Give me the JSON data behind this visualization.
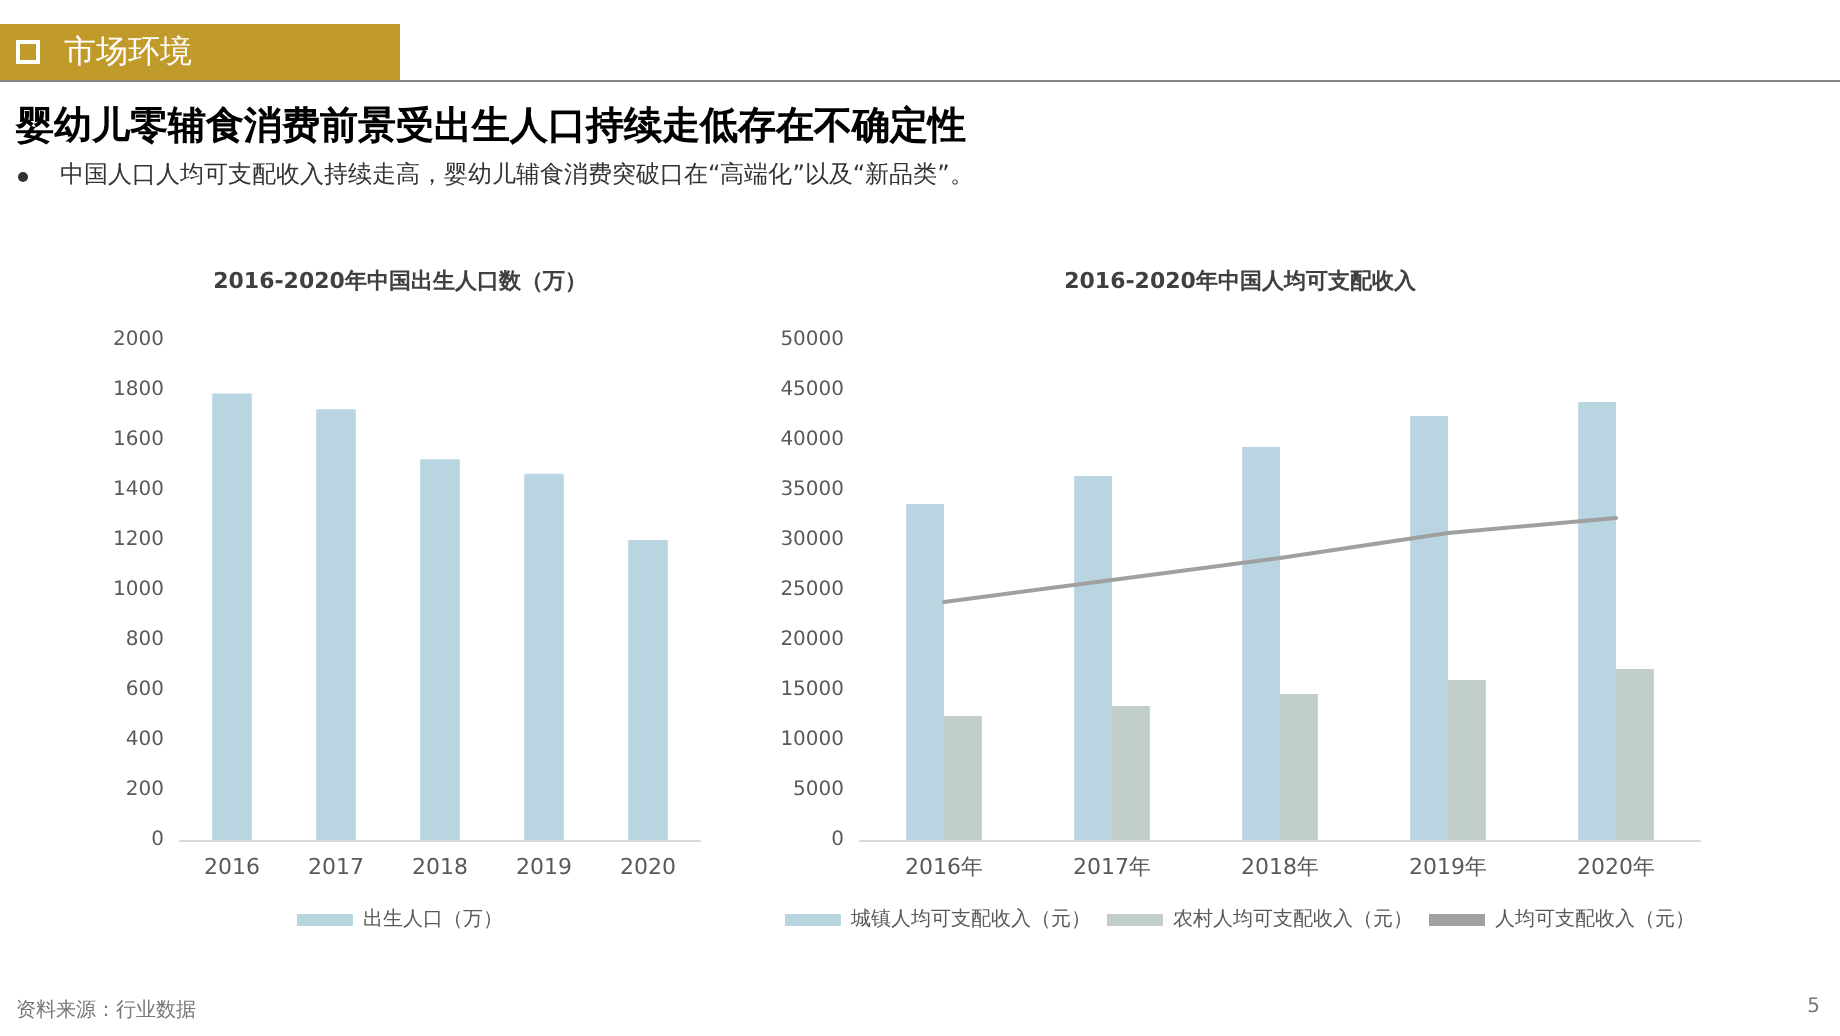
{
  "chart_data": [
    {
      "type": "bar",
      "title": "2016-2020年中国出生人口数（万）",
      "categories": [
        "2016",
        "2017",
        "2018",
        "2019",
        "2020"
      ],
      "series": [
        {
          "name": "出生人口（万）",
          "color": "#b9d5e2",
          "values": [
            1786,
            1723,
            1523,
            1465,
            1200
          ]
        }
      ],
      "ylim": [
        0,
        2000
      ],
      "yticks": [
        0,
        200,
        400,
        600,
        800,
        1000,
        1200,
        1400,
        1600,
        1800,
        2000
      ],
      "grid": false,
      "legend": "bottom",
      "annotations": [
        "市场环境",
        "婴幼儿零辅食消费前景受出生人口持续走低存在不确定性",
        "中国人口人均可支配收入持续走高，婴幼儿辅食消费突破口在“高端化”以及“新品类”。",
        "资料来源：行业数据",
        "5"
      ]
    },
    {
      "type": "bar",
      "title": "2016-2020年中国人均可支配收入",
      "categories": [
        "2016年",
        "2017年",
        "2018年",
        "2019年",
        "2020年"
      ],
      "series": [
        {
          "name": "城镇人均可支配收入（元）",
          "color": "#b9d5e2",
          "values": [
            33600,
            36400,
            39300,
            42400,
            43800
          ]
        },
        {
          "name": "农村人均可支配收入（元）",
          "color": "#c0cec7",
          "values": [
            12400,
            13400,
            14600,
            16000,
            17100
          ]
        },
        {
          "name": "人均可支配收入（元）",
          "type": "line",
          "color": "#a0a0a0",
          "values": [
            23800,
            26000,
            28200,
            30700,
            32200
          ]
        }
      ],
      "ylim": [
        0,
        50000
      ],
      "yticks": [
        0,
        5000,
        10000,
        15000,
        20000,
        25000,
        30000,
        35000,
        40000,
        45000,
        50000
      ],
      "grid": false,
      "legend": "bottom",
      "marker": "none",
      "line_style": "solid"
    }
  ]
}
